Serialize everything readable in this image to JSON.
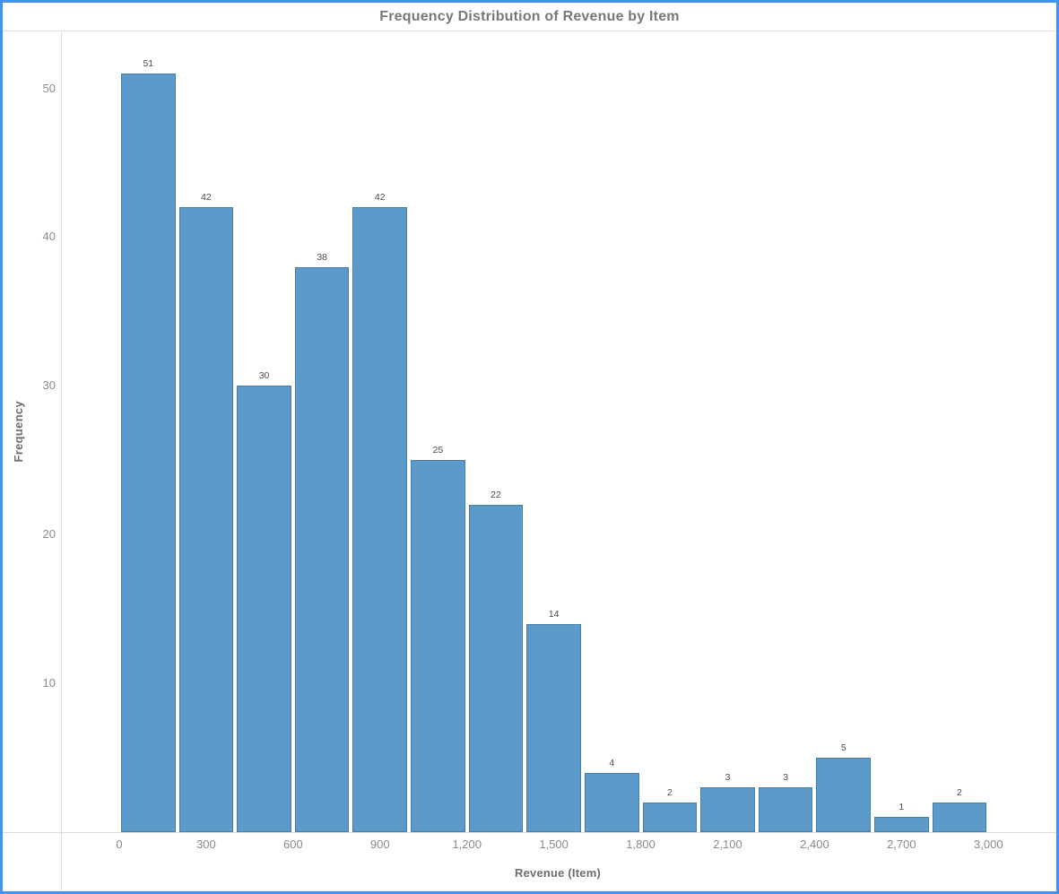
{
  "chart_data": {
    "type": "bar",
    "subtype": "histogram",
    "title": "Frequency Distribution of Revenue by Item",
    "xlabel": "Revenue (Item)",
    "ylabel": "Frequency",
    "bin_start": 0,
    "bin_width": 200,
    "counts": [
      51,
      42,
      30,
      38,
      42,
      25,
      22,
      14,
      4,
      2,
      3,
      3,
      5,
      1,
      2
    ],
    "bar_value_labels": [
      "51",
      "42",
      "30",
      "38",
      "42",
      "25",
      "22",
      "14",
      "4",
      "2",
      "3",
      "3",
      "5",
      "1",
      "2"
    ],
    "x_ticks": {
      "values": [
        0,
        300,
        600,
        900,
        1200,
        1500,
        1800,
        2100,
        2400,
        2700,
        3000
      ],
      "labels": [
        "0",
        "300",
        "600",
        "900",
        "1,200",
        "1,500",
        "1,800",
        "2,100",
        "2,400",
        "2,700",
        "3,000"
      ]
    },
    "y_ticks": {
      "values": [
        10,
        20,
        30,
        40,
        50
      ],
      "labels": [
        "10",
        "20",
        "30",
        "40",
        "50"
      ]
    },
    "xlim": [
      -200,
      3250
    ],
    "ylim": [
      0,
      54
    ],
    "grid": "off",
    "legend": "none",
    "colors": {
      "bar_fill": "#5c9bc9",
      "bar_border": "#477ea8",
      "frame_accent": "#4292f0",
      "title_text": "#787878",
      "axis_title_text": "#6e6e6e",
      "tick_text": "#8a8a8a",
      "bar_label_text": "#4b4b4b",
      "axis_line": "#dcdcdc"
    }
  }
}
